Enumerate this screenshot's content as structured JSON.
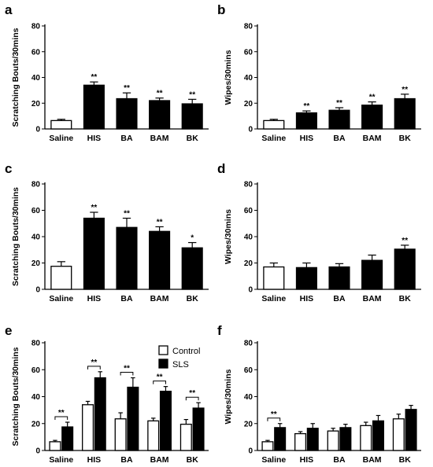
{
  "colors": {
    "white_bar": "#ffffff",
    "black_bar": "#000000",
    "stroke": "#000000"
  },
  "chart_data": [
    {
      "panel": "a",
      "type": "bar",
      "ylabel": "Scratching Bouts/30mins",
      "ylim": [
        0,
        80
      ],
      "yticks": [
        0,
        20,
        40,
        60,
        80
      ],
      "categories": [
        "Saline",
        "HIS",
        "BA",
        "BAM",
        "BK"
      ],
      "values": [
        6.5,
        34,
        23.5,
        22,
        19.5
      ],
      "errors": [
        1.0,
        2.5,
        4.5,
        2.0,
        3.5
      ],
      "fills": [
        "white",
        "black",
        "black",
        "black",
        "black"
      ],
      "significance": [
        "",
        "**",
        "**",
        "**",
        "**"
      ]
    },
    {
      "panel": "b",
      "type": "bar",
      "ylabel": "Wipes/30mins",
      "ylim": [
        0,
        80
      ],
      "yticks": [
        0,
        20,
        40,
        60,
        80
      ],
      "categories": [
        "Saline",
        "HIS",
        "BA",
        "BAM",
        "BK"
      ],
      "values": [
        6.5,
        12.5,
        14.5,
        18.5,
        23.5
      ],
      "errors": [
        1.0,
        1.5,
        2.0,
        2.5,
        3.5
      ],
      "fills": [
        "white",
        "black",
        "black",
        "black",
        "black"
      ],
      "significance": [
        "",
        "**",
        "**",
        "**",
        "**"
      ]
    },
    {
      "panel": "c",
      "type": "bar",
      "ylabel": "Scratching Bouts/30mins",
      "ylim": [
        0,
        80
      ],
      "yticks": [
        0,
        20,
        40,
        60,
        80
      ],
      "categories": [
        "Saline",
        "HIS",
        "BA",
        "BAM",
        "BK"
      ],
      "values": [
        17.5,
        54,
        47,
        44,
        31.5
      ],
      "errors": [
        3.5,
        4.5,
        7.0,
        3.5,
        4.0
      ],
      "fills": [
        "white",
        "black",
        "black",
        "black",
        "black"
      ],
      "significance": [
        "",
        "**",
        "**",
        "**",
        "*"
      ]
    },
    {
      "panel": "d",
      "type": "bar",
      "ylabel": "Wipes/30mins",
      "ylim": [
        0,
        80
      ],
      "yticks": [
        0,
        20,
        40,
        60,
        80
      ],
      "categories": [
        "Saline",
        "HIS",
        "BA",
        "BAM",
        "BK"
      ],
      "values": [
        17,
        16.5,
        17,
        22,
        30.5
      ],
      "errors": [
        3.0,
        3.5,
        2.5,
        4.0,
        3.0
      ],
      "fills": [
        "white",
        "black",
        "black",
        "black",
        "black"
      ],
      "significance": [
        "",
        "",
        "",
        "",
        "**"
      ]
    },
    {
      "panel": "e",
      "type": "bar",
      "ylabel": "Scratching Bouts/30mins",
      "ylim": [
        0,
        80
      ],
      "yticks": [
        0,
        20,
        40,
        60,
        80
      ],
      "categories": [
        "Saline",
        "HIS",
        "BA",
        "BAM",
        "BK"
      ],
      "series": [
        {
          "name": "Control",
          "fill": "white",
          "values": [
            6.5,
            34,
            23.5,
            22,
            19.5
          ],
          "errors": [
            1.0,
            2.5,
            4.5,
            2.0,
            3.5
          ]
        },
        {
          "name": "SLS",
          "fill": "black",
          "values": [
            17.5,
            54,
            47,
            44,
            31.5
          ],
          "errors": [
            3.5,
            4.5,
            7.0,
            3.5,
            4.0
          ]
        }
      ],
      "significance": [
        "**",
        "**",
        "**",
        "**",
        "**"
      ],
      "legend": "top-right"
    },
    {
      "panel": "f",
      "type": "bar",
      "ylabel": "Wipes/30mins",
      "ylim": [
        0,
        80
      ],
      "yticks": [
        0,
        20,
        40,
        60,
        80
      ],
      "categories": [
        "Saline",
        "HIS",
        "BA",
        "BAM",
        "BK"
      ],
      "series": [
        {
          "name": "Control",
          "fill": "white",
          "values": [
            6.5,
            12.5,
            14.5,
            18.5,
            23.5
          ],
          "errors": [
            1.0,
            1.5,
            2.0,
            2.5,
            3.5
          ]
        },
        {
          "name": "SLS",
          "fill": "black",
          "values": [
            17,
            16.5,
            17,
            22,
            30.5
          ],
          "errors": [
            3.0,
            3.5,
            2.5,
            4.0,
            3.0
          ]
        }
      ],
      "significance": [
        "**",
        "",
        "",
        "",
        ""
      ]
    }
  ]
}
